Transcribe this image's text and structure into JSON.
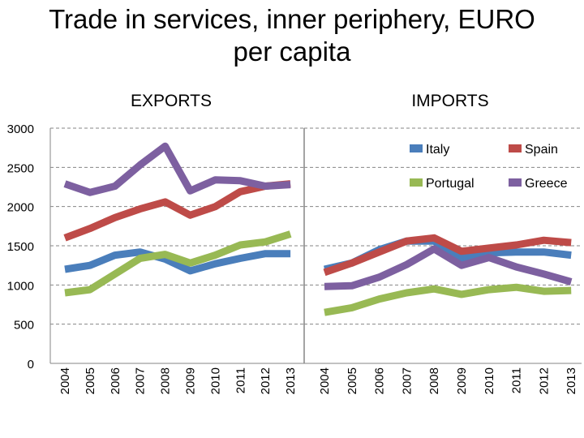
{
  "title_line1": "Trade in services, inner periphery, EURO",
  "title_line2": "per capita",
  "chart_data": {
    "type": "line",
    "title": "Trade in services, inner periphery, EURO per capita",
    "panels": [
      {
        "label": "EXPORTS",
        "series": [
          {
            "name": "Italy",
            "values": [
              1200,
              1250,
              1380,
              1420,
              1330,
              1180,
              1270,
              1340,
              1400,
              1400
            ]
          },
          {
            "name": "Spain",
            "values": [
              1600,
              1720,
              1860,
              1970,
              2060,
              1890,
              2000,
              2190,
              2260,
              2290
            ]
          },
          {
            "name": "Portugal",
            "values": [
              900,
              940,
              1140,
              1340,
              1390,
              1280,
              1380,
              1510,
              1550,
              1650
            ]
          },
          {
            "name": "Greece",
            "values": [
              2290,
              2180,
              2260,
              2530,
              2770,
              2200,
              2340,
              2330,
              2260,
              2280
            ]
          }
        ]
      },
      {
        "label": "IMPORTS",
        "series": [
          {
            "name": "Italy",
            "values": [
              1200,
              1280,
              1450,
              1560,
              1560,
              1340,
              1410,
              1420,
              1420,
              1380
            ]
          },
          {
            "name": "Spain",
            "values": [
              1160,
              1280,
              1420,
              1560,
              1600,
              1430,
              1470,
              1510,
              1570,
              1540
            ]
          },
          {
            "name": "Portugal",
            "values": [
              650,
              710,
              820,
              900,
              950,
              880,
              940,
              970,
              920,
              930
            ]
          },
          {
            "name": "Greece",
            "values": [
              980,
              990,
              1100,
              1260,
              1460,
              1250,
              1350,
              1230,
              1140,
              1040
            ]
          }
        ]
      }
    ],
    "categories": [
      "2004",
      "2005",
      "2006",
      "2007",
      "2008",
      "2009",
      "2010",
      "2011",
      "2012",
      "2013"
    ],
    "y_ticks": [
      "0",
      "500",
      "1000",
      "1500",
      "2000",
      "2500",
      "3000"
    ],
    "ylim": [
      0,
      3000
    ],
    "legend": [
      "Italy",
      "Spain",
      "Portugal",
      "Greece"
    ],
    "legend_position": "top-right",
    "colors": {
      "Italy": "#4a7ebb",
      "Spain": "#be4b48",
      "Portugal": "#98b954",
      "Greece": "#7d60a0"
    },
    "grid": true
  }
}
